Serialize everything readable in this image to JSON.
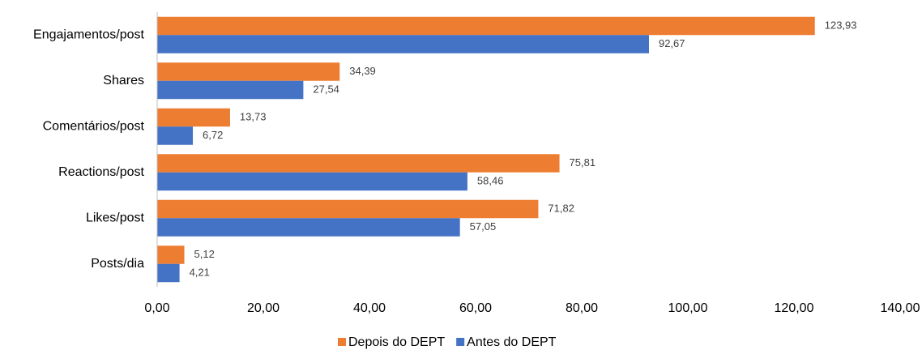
{
  "chart_data": {
    "type": "barh",
    "categories": [
      "Engajamentos/post",
      "Shares",
      "Comentários/post",
      "Reactions/post",
      "Likes/post",
      "Posts/dia"
    ],
    "series": [
      {
        "name": "Depois do DEPT",
        "color": "#ED7D31",
        "values": [
          123.93,
          34.39,
          13.73,
          75.81,
          71.82,
          5.12
        ],
        "value_labels": [
          "123,93",
          "34,39",
          "13,73",
          "75,81",
          "71,82",
          "5,12"
        ]
      },
      {
        "name": "Antes do DEPT",
        "color": "#4472C4",
        "values": [
          92.67,
          27.54,
          6.72,
          58.46,
          57.05,
          4.21
        ],
        "value_labels": [
          "92,67",
          "27,54",
          "6,72",
          "58,46",
          "57,05",
          "4,21"
        ]
      }
    ],
    "xlim": [
      0,
      140
    ],
    "xticks": [
      {
        "value": 0,
        "label": "0,00"
      },
      {
        "value": 20,
        "label": "20,00"
      },
      {
        "value": 40,
        "label": "40,00"
      },
      {
        "value": 60,
        "label": "60,00"
      },
      {
        "value": 80,
        "label": "80,00"
      },
      {
        "value": 100,
        "label": "100,00"
      },
      {
        "value": 120,
        "label": "120,00"
      },
      {
        "value": 140,
        "label": "140,00"
      }
    ],
    "legend": "bottom"
  }
}
